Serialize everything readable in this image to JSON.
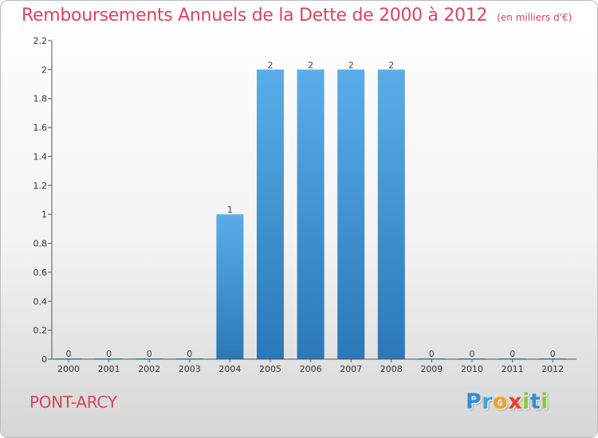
{
  "title": "Remboursements Annuels de la Dette de 2000 à 2012",
  "unit_note": "(en milliers d'€)",
  "commune": "PONT-ARCY",
  "logo": {
    "letters": [
      {
        "ch": "P",
        "color": "#2f8fd8"
      },
      {
        "ch": "r",
        "color": "#3aa4e0"
      },
      {
        "ch": "o",
        "color": "#f0a020"
      },
      {
        "ch": "x",
        "color": "#e8402a"
      },
      {
        "ch": "i",
        "color": "#8cc63f"
      },
      {
        "ch": "t",
        "color": "#2f8fd8"
      },
      {
        "ch": "i",
        "color": "#8cc63f"
      }
    ]
  },
  "colors": {
    "accent": "#d9455f",
    "bar_top": "#5aaee8",
    "bar_bottom": "#2a78b8"
  },
  "chart_data": {
    "type": "bar",
    "categories": [
      "2000",
      "2001",
      "2002",
      "2003",
      "2004",
      "2005",
      "2006",
      "2007",
      "2008",
      "2009",
      "2010",
      "2011",
      "2012"
    ],
    "values": [
      0,
      0,
      0,
      0,
      1,
      2,
      2,
      2,
      2,
      0,
      0,
      0,
      0
    ],
    "data_labels": [
      "0",
      "0",
      "0",
      "0",
      "1",
      "2",
      "2",
      "2",
      "2",
      "0",
      "0",
      "0",
      "0"
    ],
    "ylim": [
      0,
      2.2
    ],
    "yticks": [
      0,
      0.2,
      0.4,
      0.6,
      0.8,
      1,
      1.2,
      1.4,
      1.6,
      1.8,
      2,
      2.2
    ],
    "ytick_labels": [
      "0",
      "0.2",
      "0.4",
      "0.6",
      "0.8",
      "1",
      "1.2",
      "1.4",
      "1.6",
      "1.8",
      "2",
      "2.2"
    ],
    "grid": false,
    "legend": "none"
  }
}
